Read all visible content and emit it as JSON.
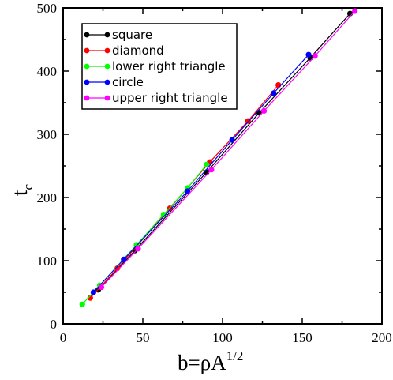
{
  "chart_data": {
    "type": "line",
    "xlabel": "b=ρA",
    "xlabel_sup": "1/2",
    "ylabel": "t",
    "ylabel_sub": "c",
    "xlim": [
      0,
      200
    ],
    "ylim": [
      0,
      500
    ],
    "xticks": [
      "0",
      "50",
      "100",
      "150",
      "200"
    ],
    "yticks": [
      "0",
      "100",
      "200",
      "300",
      "400",
      "500"
    ],
    "grid": false,
    "legend_position": "top-left",
    "series": [
      {
        "name": "square",
        "color": "#000000",
        "x": [
          22,
          45,
          90,
          123,
          155,
          180
        ],
        "y": [
          54,
          116,
          240,
          334,
          421,
          491
        ]
      },
      {
        "name": "diamond",
        "color": "#ff0000",
        "x": [
          17,
          34,
          67,
          92,
          116,
          135
        ],
        "y": [
          41,
          88,
          183,
          256,
          321,
          378
        ]
      },
      {
        "name": "lower right triangle",
        "color": "#00ff00",
        "x": [
          12,
          23,
          46,
          63,
          78,
          90
        ],
        "y": [
          31,
          61,
          125,
          173,
          215,
          252
        ]
      },
      {
        "name": "circle",
        "color": "#0000ff",
        "x": [
          19,
          38,
          78,
          106,
          132,
          154
        ],
        "y": [
          50,
          102,
          210,
          291,
          365,
          426
        ]
      },
      {
        "name": "upper right triangle",
        "color": "#ff00ff",
        "x": [
          24,
          47,
          93,
          126,
          158,
          183
        ],
        "y": [
          58,
          119,
          244,
          337,
          424,
          495
        ]
      }
    ]
  }
}
